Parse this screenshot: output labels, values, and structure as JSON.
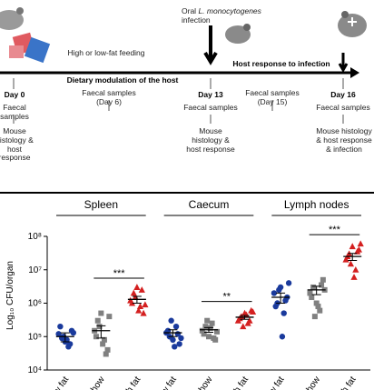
{
  "diagram": {
    "feeding": "High or low-fat feeding",
    "infection_prefix": "Oral",
    "infection_species": "L. monocytogenes",
    "infection_suffix": "infection",
    "phase1": "Dietary modulation of the host",
    "phase2": "Host response to infection",
    "columns": [
      {
        "day": "Day 0",
        "samples": "Faecal samples",
        "outcome": "Mouse histology & host response"
      },
      {
        "samples": "Faecal samples (Day 6)"
      },
      {
        "day": "Day 13",
        "samples": "Faecal samples",
        "outcome": "Mouse histology & host response"
      },
      {
        "samples": "Faecal samples (Day 15)"
      },
      {
        "day": "Day 16",
        "samples": "Faecal samples",
        "outcome": "Mouse histology & host response & infection"
      }
    ]
  },
  "chart_data": {
    "type": "dot",
    "ylabel": "Log₁₀ CFU/organ",
    "log": true,
    "ylim": [
      10000,
      100000000
    ],
    "yticks": [
      {
        "value": 10000,
        "label": "10⁴"
      },
      {
        "value": 100000,
        "label": "10⁵"
      },
      {
        "value": 1000000,
        "label": "10⁶"
      },
      {
        "value": 10000000,
        "label": "10⁷"
      },
      {
        "value": 100000000,
        "label": "10⁸"
      }
    ],
    "panels": [
      {
        "title": "Spleen",
        "significance": "***",
        "groups": [
          {
            "category": "Low fat",
            "color": "#1a3a9c",
            "marker": "circle",
            "values": [
              120000,
              90000,
              70000,
              50000,
              150000,
              200000,
              100000,
              80000,
              60000,
              130000
            ],
            "mean": 100000,
            "sem": 30000
          },
          {
            "category": "Chow",
            "color": "#808080",
            "marker": "square",
            "values": [
              150000,
              300000,
              500000,
              80000,
              40000,
              100000,
              200000,
              60000,
              30000,
              400000
            ],
            "mean": 150000,
            "sem": 60000
          },
          {
            "category": "High fat",
            "color": "#d42020",
            "marker": "triangle",
            "values": [
              1200000,
              2000000,
              3000000,
              800000,
              500000,
              1000000,
              1500000,
              600000,
              2500000,
              900000
            ],
            "mean": 1300000,
            "sem": 300000
          }
        ]
      },
      {
        "title": "Caecum",
        "significance": "**",
        "groups": [
          {
            "category": "Low fat",
            "color": "#1a3a9c",
            "marker": "circle",
            "values": [
              130000,
              100000,
              80000,
              200000,
              60000,
              150000,
              300000,
              50000,
              120000,
              90000
            ],
            "mean": 130000,
            "sem": 30000
          },
          {
            "category": "Chow",
            "color": "#808080",
            "marker": "square",
            "values": [
              150000,
              200000,
              100000,
              250000,
              80000,
              120000,
              300000,
              180000,
              90000,
              140000
            ],
            "mean": 160000,
            "sem": 25000
          },
          {
            "category": "High fat",
            "color": "#d42020",
            "marker": "triangle",
            "values": [
              300000,
              400000,
              500000,
              250000,
              600000,
              350000,
              200000,
              450000,
              300000,
              550000
            ],
            "mean": 380000,
            "sem": 50000
          }
        ]
      },
      {
        "title": "Lymph nodes",
        "significance": "***",
        "groups": [
          {
            "category": "Low fat",
            "color": "#1a3a9c",
            "marker": "circle",
            "values": [
              2000000,
              1000000,
              3000000,
              500000,
              1500000,
              800000,
              2500000,
              100000,
              1200000,
              4000000
            ],
            "mean": 1500000,
            "sem": 500000
          },
          {
            "category": "Chow",
            "color": "#808080",
            "marker": "square",
            "values": [
              2000000,
              3000000,
              1000000,
              600000,
              5000000,
              1500000,
              400000,
              800000,
              3500000,
              2500000
            ],
            "mean": 2500000,
            "sem": 700000
          },
          {
            "category": "High fat",
            "color": "#d42020",
            "marker": "triangle",
            "values": [
              20000000,
              30000000,
              50000000,
              10000000,
              40000000,
              25000000,
              15000000,
              6000000,
              35000000,
              60000000
            ],
            "mean": 25000000,
            "sem": 6000000
          }
        ]
      }
    ]
  }
}
